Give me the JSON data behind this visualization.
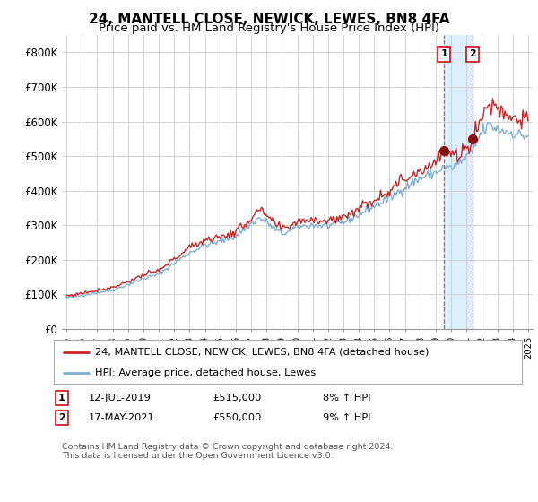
{
  "title": "24, MANTELL CLOSE, NEWICK, LEWES, BN8 4FA",
  "subtitle": "Price paid vs. HM Land Registry's House Price Index (HPI)",
  "xlim": [
    1994.7,
    2025.3
  ],
  "ylim": [
    0,
    850000
  ],
  "yticks": [
    0,
    100000,
    200000,
    300000,
    400000,
    500000,
    600000,
    700000,
    800000
  ],
  "ytick_labels": [
    "£0",
    "£100K",
    "£200K",
    "£300K",
    "£400K",
    "£500K",
    "£600K",
    "£700K",
    "£800K"
  ],
  "sale1_date": 2019.54,
  "sale1_price": 515000,
  "sale2_date": 2021.37,
  "sale2_price": 550000,
  "hpi_color": "#7bafd4",
  "price_color": "#cc2222",
  "background_color": "#ffffff",
  "grid_color": "#cccccc",
  "shaded_color": "#ddeeff",
  "vline_color": "#cc4444",
  "legend_entry1": "24, MANTELL CLOSE, NEWICK, LEWES, BN8 4FA (detached house)",
  "legend_entry2": "HPI: Average price, detached house, Lewes",
  "annotation1_date": "12-JUL-2019",
  "annotation1_price": "£515,000",
  "annotation1_hpi": "8% ↑ HPI",
  "annotation2_date": "17-MAY-2021",
  "annotation2_price": "£550,000",
  "annotation2_hpi": "9% ↑ HPI",
  "footer": "Contains HM Land Registry data © Crown copyright and database right 2024.\nThis data is licensed under the Open Government Licence v3.0.",
  "title_fontsize": 11,
  "subtitle_fontsize": 9.5
}
